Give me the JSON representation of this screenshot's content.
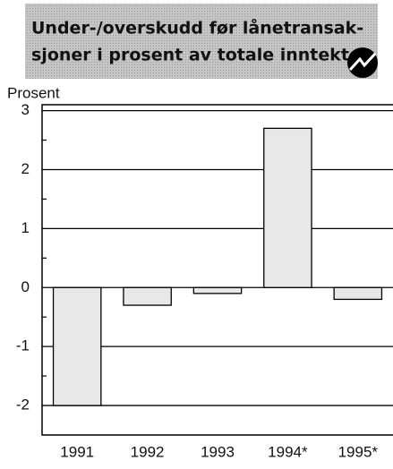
{
  "chart_data": {
    "type": "bar",
    "title": [
      "Under-/overskudd før lånetransak-",
      "sjoner i prosent av totale inntekter"
    ],
    "y_label": "Prosent",
    "categories": [
      "1991",
      "1992",
      "1993",
      "1994*",
      "1995*"
    ],
    "values": [
      -2.0,
      -0.3,
      -0.1,
      2.7,
      -0.2
    ],
    "color": "#e8e8e8",
    "ylim": [
      -2.5,
      3.1
    ],
    "yticks": [
      -2,
      -1,
      0,
      1,
      2,
      3
    ],
    "minor_yticks": [
      -1.5,
      -0.5,
      0.5,
      1.5,
      2.5
    ],
    "grid": true
  }
}
